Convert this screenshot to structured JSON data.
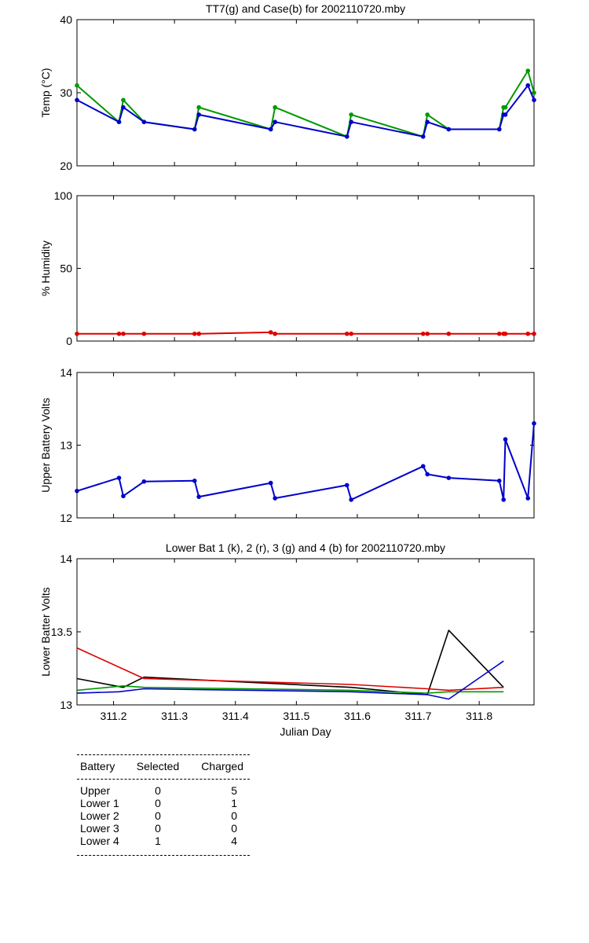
{
  "chart_data": [
    {
      "type": "line",
      "title": "TT7(g) and Case(b) for 2002110720.mby",
      "ylabel": "Temp  (°C)",
      "xlim": [
        311.14,
        311.89
      ],
      "ylim": [
        20,
        40
      ],
      "yticks": [
        20,
        30,
        40
      ],
      "series": [
        {
          "name": "TT7",
          "color": "#009900",
          "markers": true,
          "x": [
            311.14,
            311.209,
            311.216,
            311.25,
            311.333,
            311.34,
            311.458,
            311.465,
            311.583,
            311.59,
            311.708,
            311.715,
            311.75
          ],
          "y": [
            31,
            26,
            29,
            26,
            25,
            28,
            25,
            28,
            24,
            27,
            24,
            27,
            25
          ]
        },
        {
          "name": "TT7",
          "color": "#009900",
          "markers": true,
          "x": [
            311.833,
            311.84,
            311.843,
            311.88,
            311.89
          ],
          "y": [
            25,
            28,
            28,
            33,
            30
          ]
        },
        {
          "name": "Case",
          "color": "#0000cc",
          "markers": true,
          "x": [
            311.14,
            311.209,
            311.216,
            311.25,
            311.333,
            311.34,
            311.458,
            311.465,
            311.583,
            311.59,
            311.708,
            311.715,
            311.75,
            311.833,
            311.84,
            311.843,
            311.88,
            311.89
          ],
          "y": [
            29,
            26,
            28,
            26,
            25,
            27,
            25,
            26,
            24,
            26,
            24,
            26,
            25,
            25,
            27,
            27,
            31,
            29
          ]
        }
      ]
    },
    {
      "type": "line",
      "title": "",
      "ylabel": "% Humidity",
      "xlim": [
        311.14,
        311.89
      ],
      "ylim": [
        0,
        100
      ],
      "yticks": [
        0,
        50,
        100
      ],
      "series": [
        {
          "name": "Humidity",
          "color": "#dd0000",
          "markers": true,
          "x": [
            311.14,
            311.209,
            311.216,
            311.25,
            311.333,
            311.34,
            311.458,
            311.465,
            311.583,
            311.59,
            311.708,
            311.715,
            311.75,
            311.833,
            311.84,
            311.843,
            311.88,
            311.89
          ],
          "y": [
            5,
            5,
            5,
            5,
            5,
            5,
            6,
            5,
            5,
            5,
            5,
            5,
            5,
            5,
            5,
            5,
            5,
            5
          ]
        }
      ]
    },
    {
      "type": "line",
      "title": "",
      "ylabel": "Upper Battery Volts",
      "xlim": [
        311.14,
        311.89
      ],
      "ylim": [
        12,
        14
      ],
      "yticks": [
        12,
        13,
        14
      ],
      "series": [
        {
          "name": "Upper",
          "color": "#0000cc",
          "markers": true,
          "x": [
            311.14,
            311.209,
            311.216,
            311.25,
            311.333,
            311.34,
            311.458,
            311.465,
            311.583,
            311.59,
            311.708,
            311.715,
            311.75,
            311.833,
            311.84,
            311.843,
            311.88,
            311.89
          ],
          "y": [
            12.37,
            12.55,
            12.3,
            12.5,
            12.51,
            12.29,
            12.48,
            12.27,
            12.45,
            12.25,
            12.71,
            12.6,
            12.55,
            12.51,
            12.25,
            13.08,
            12.27,
            13.3
          ]
        }
      ]
    },
    {
      "type": "line",
      "title": "Lower Bat 1 (k), 2 (r), 3 (g) and 4 (b) for 2002110720.mby",
      "xlabel": "Julian Day",
      "ylabel": "Lower Batter Volts",
      "xlim": [
        311.14,
        311.89
      ],
      "ylim": [
        13,
        14
      ],
      "yticks": [
        13,
        13.5,
        14
      ],
      "xticks": [
        311.2,
        311.3,
        311.4,
        311.5,
        311.6,
        311.7,
        311.8
      ],
      "series": [
        {
          "name": "Lower 1",
          "color": "#000000",
          "markers": false,
          "x": [
            311.14,
            311.216,
            311.25,
            311.59,
            311.715,
            311.75,
            311.84
          ],
          "y": [
            13.18,
            13.12,
            13.19,
            13.12,
            13.07,
            13.51,
            13.12
          ]
        },
        {
          "name": "Lower 2",
          "color": "#dd0000",
          "markers": false,
          "x": [
            311.14,
            311.25,
            311.59,
            311.715,
            311.75,
            311.84
          ],
          "y": [
            13.39,
            13.18,
            13.14,
            13.11,
            13.1,
            13.12
          ]
        },
        {
          "name": "Lower 3",
          "color": "#009900",
          "markers": false,
          "x": [
            311.14,
            311.216,
            311.25,
            311.59,
            311.715,
            311.75,
            311.84
          ],
          "y": [
            13.1,
            13.13,
            13.12,
            13.1,
            13.08,
            13.09,
            13.09
          ]
        },
        {
          "name": "Lower 4",
          "color": "#0000cc",
          "markers": false,
          "x": [
            311.14,
            311.209,
            311.25,
            311.59,
            311.715,
            311.75,
            311.84
          ],
          "y": [
            13.08,
            13.09,
            13.11,
            13.09,
            13.07,
            13.04,
            13.3
          ]
        }
      ]
    }
  ],
  "stats_table": {
    "headers": [
      "Battery",
      "Selected",
      "Charged"
    ],
    "rows": [
      {
        "battery": "Upper",
        "selected": "0",
        "charged": "5"
      },
      {
        "battery": "Lower 1",
        "selected": "0",
        "charged": "1"
      },
      {
        "battery": "Lower 2",
        "selected": "0",
        "charged": "0"
      },
      {
        "battery": "Lower 3",
        "selected": "0",
        "charged": "0"
      },
      {
        "battery": "Lower 4",
        "selected": "1",
        "charged": "4"
      }
    ]
  }
}
